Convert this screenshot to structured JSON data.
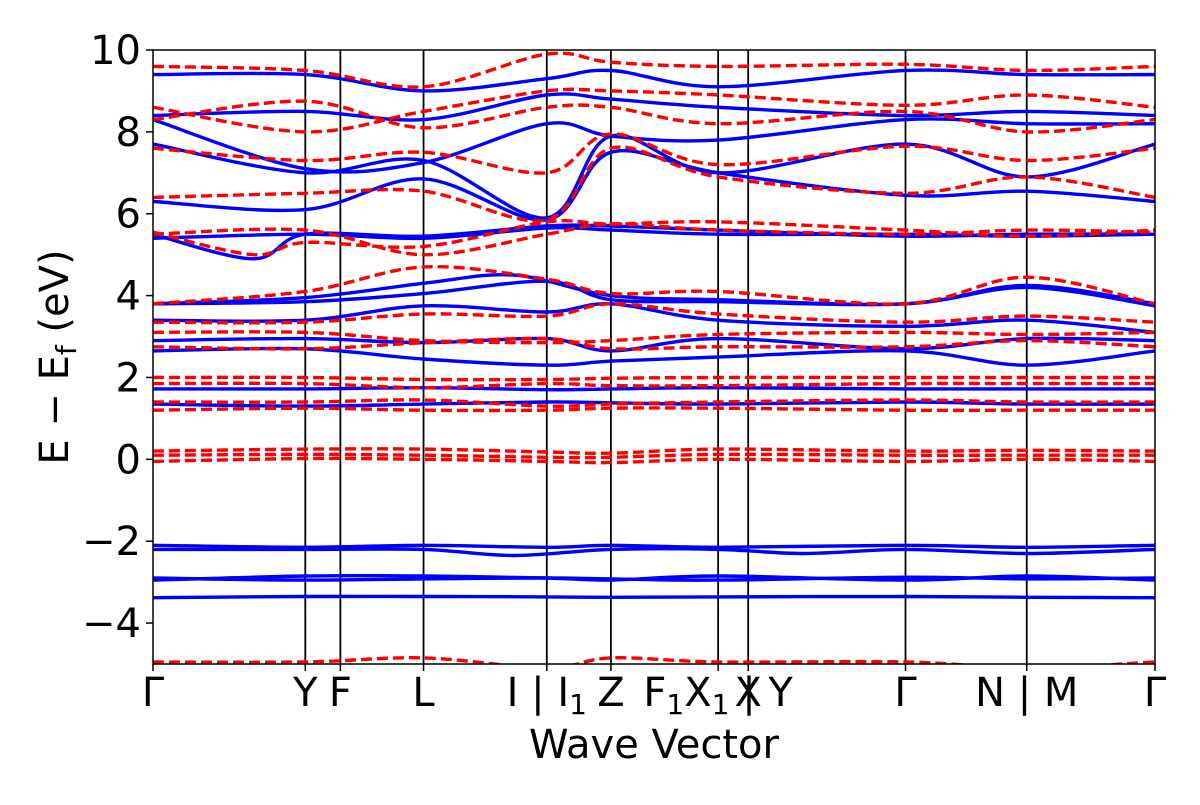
{
  "chart_data": {
    "type": "line",
    "title": "",
    "xlabel": "Wave Vector",
    "ylabel_parts": [
      "E − E",
      "f",
      " (eV)"
    ],
    "ylim": [
      -5,
      10
    ],
    "yticks": [
      -4,
      -2,
      0,
      2,
      4,
      6,
      8,
      10
    ],
    "ytick_labels": [
      "−4",
      "−2",
      "0",
      "2",
      "4",
      "6",
      "8",
      "10"
    ],
    "grid": false,
    "legend": "none",
    "kpath": {
      "x_range": [
        0,
        1
      ],
      "vlines": [
        0.152,
        0.187,
        0.27,
        0.393,
        0.457,
        0.564,
        0.594,
        0.751,
        0.872
      ],
      "labels": [
        {
          "x": 0.0,
          "text": "Γ"
        },
        {
          "x": 0.152,
          "text": "Y"
        },
        {
          "x": 0.187,
          "text": "F"
        },
        {
          "x": 0.27,
          "text": "L"
        },
        {
          "x": 0.393,
          "text": "I | I₁"
        },
        {
          "x": 0.457,
          "text": "Z"
        },
        {
          "x": 0.564,
          "text": "F₁X₁ | Y"
        },
        {
          "x": 0.594,
          "text": "X"
        },
        {
          "x": 0.751,
          "text": "Γ"
        },
        {
          "x": 0.872,
          "text": "N | M"
        },
        {
          "x": 1.0,
          "text": "Γ"
        }
      ]
    },
    "series": [
      {
        "color": "#0000ff",
        "style": "solid",
        "bands": [
          {
            "x": [
              0,
              0.152,
              0.27,
              0.393,
              0.457,
              0.564,
              0.751,
              0.872,
              1.0
            ],
            "y": [
              -3.38,
              -3.35,
              -3.35,
              -3.36,
              -3.37,
              -3.36,
              -3.35,
              -3.37,
              -3.38
            ]
          },
          {
            "x": [
              0,
              0.152,
              0.27,
              0.393,
              0.457,
              0.564,
              0.751,
              0.872,
              1.0
            ],
            "y": [
              -2.95,
              -2.85,
              -2.85,
              -2.9,
              -2.95,
              -2.85,
              -2.95,
              -2.85,
              -2.95
            ]
          },
          {
            "x": [
              0,
              0.152,
              0.27,
              0.393,
              0.457,
              0.564,
              0.751,
              0.872,
              1.0
            ],
            "y": [
              -2.9,
              -2.95,
              -2.92,
              -2.9,
              -2.92,
              -2.95,
              -2.88,
              -2.92,
              -2.9
            ]
          },
          {
            "x": [
              0,
              0.152,
              0.27,
              0.36,
              0.457,
              0.564,
              0.65,
              0.751,
              0.872,
              1.0
            ],
            "y": [
              -2.2,
              -2.2,
              -2.2,
              -2.35,
              -2.2,
              -2.2,
              -2.3,
              -2.2,
              -2.3,
              -2.2
            ]
          },
          {
            "x": [
              0,
              0.152,
              0.27,
              0.393,
              0.457,
              0.564,
              0.751,
              0.872,
              1.0
            ],
            "y": [
              -2.1,
              -2.15,
              -2.1,
              -2.15,
              -2.1,
              -2.15,
              -2.1,
              -2.15,
              -2.1
            ]
          },
          {
            "x": [
              0,
              0.152,
              0.27,
              0.393,
              0.457,
              0.564,
              0.751,
              0.872,
              1.0
            ],
            "y": [
              1.35,
              1.3,
              1.35,
              1.4,
              1.38,
              1.35,
              1.4,
              1.35,
              1.35
            ]
          },
          {
            "x": [
              0,
              0.152,
              0.27,
              0.393,
              0.457,
              0.564,
              0.751,
              0.872,
              1.0
            ],
            "y": [
              1.72,
              1.72,
              1.75,
              1.7,
              1.72,
              1.75,
              1.72,
              1.72,
              1.72
            ]
          },
          {
            "x": [
              0,
              0.152,
              0.27,
              0.393,
              0.457,
              0.564,
              0.751,
              0.872,
              1.0
            ],
            "y": [
              2.65,
              2.7,
              2.45,
              2.3,
              2.4,
              2.5,
              2.65,
              2.3,
              2.65
            ]
          },
          {
            "x": [
              0,
              0.152,
              0.27,
              0.393,
              0.457,
              0.564,
              0.751,
              0.872,
              1.0
            ],
            "y": [
              2.9,
              2.95,
              2.85,
              2.95,
              2.65,
              2.95,
              2.7,
              2.95,
              2.9
            ]
          },
          {
            "x": [
              0,
              0.152,
              0.27,
              0.393,
              0.457,
              0.564,
              0.751,
              0.872,
              1.0
            ],
            "y": [
              3.4,
              3.4,
              3.75,
              3.6,
              3.8,
              3.4,
              3.25,
              3.4,
              3.1
            ]
          },
          {
            "x": [
              0,
              0.152,
              0.27,
              0.393,
              0.457,
              0.564,
              0.751,
              0.872,
              1.0
            ],
            "y": [
              3.8,
              3.85,
              4.05,
              4.35,
              3.9,
              3.85,
              3.8,
              4.2,
              3.75
            ]
          },
          {
            "x": [
              0,
              0.152,
              0.27,
              0.36,
              0.457,
              0.564,
              0.751,
              0.872,
              1.0
            ],
            "y": [
              3.8,
              3.95,
              4.3,
              4.5,
              4.0,
              3.9,
              3.8,
              4.25,
              3.8
            ]
          },
          {
            "x": [
              0,
              0.152,
              0.27,
              0.393,
              0.457,
              0.564,
              0.751,
              0.872,
              1.0
            ],
            "y": [
              5.4,
              5.5,
              5.4,
              5.65,
              5.6,
              5.5,
              5.5,
              5.45,
              5.5
            ]
          },
          {
            "x": [
              0,
              0.1,
              0.152,
              0.27,
              0.393,
              0.457,
              0.564,
              0.751,
              0.872,
              1.0
            ],
            "y": [
              5.5,
              4.9,
              5.5,
              5.45,
              5.7,
              5.7,
              5.6,
              5.45,
              5.5,
              5.5
            ]
          },
          {
            "x": [
              0,
              0.152,
              0.27,
              0.393,
              0.457,
              0.564,
              0.751,
              0.872,
              1.0
            ],
            "y": [
              6.3,
              6.1,
              6.85,
              5.85,
              7.5,
              7.0,
              6.45,
              6.55,
              6.3
            ]
          },
          {
            "x": [
              0,
              0.152,
              0.27,
              0.393,
              0.457,
              0.564,
              0.751,
              0.872,
              1.0
            ],
            "y": [
              7.7,
              7.0,
              7.3,
              5.9,
              7.9,
              7.0,
              7.7,
              6.9,
              7.7
            ]
          },
          {
            "x": [
              0,
              0.152,
              0.27,
              0.393,
              0.457,
              0.564,
              0.751,
              0.872,
              1.0
            ],
            "y": [
              8.3,
              7.1,
              7.25,
              8.2,
              7.9,
              7.8,
              8.3,
              8.2,
              8.2
            ]
          },
          {
            "x": [
              0,
              0.152,
              0.27,
              0.393,
              0.457,
              0.564,
              0.751,
              0.872,
              1.0
            ],
            "y": [
              8.4,
              8.5,
              8.3,
              8.9,
              8.8,
              8.6,
              8.4,
              8.5,
              8.4
            ]
          },
          {
            "x": [
              0,
              0.152,
              0.27,
              0.393,
              0.457,
              0.564,
              0.751,
              0.872,
              1.0
            ],
            "y": [
              9.4,
              9.4,
              9.0,
              9.3,
              9.5,
              9.1,
              9.5,
              9.4,
              9.4
            ]
          }
        ]
      },
      {
        "color": "#ff0000",
        "style": "dashed",
        "bands": [
          {
            "x": [
              0,
              0.152,
              0.27,
              0.393,
              0.457,
              0.564,
              0.751,
              0.872,
              1.0
            ],
            "y": [
              -4.95,
              -4.95,
              -4.85,
              -5.1,
              -4.85,
              -4.95,
              -4.95,
              -5.1,
              -4.95
            ]
          },
          {
            "x": [
              0,
              0.152,
              0.27,
              0.393,
              0.457,
              0.564,
              0.751,
              0.872,
              1.0
            ],
            "y": [
              -0.05,
              0.02,
              0.0,
              -0.05,
              -0.08,
              0.0,
              -0.05,
              0.0,
              -0.05
            ]
          },
          {
            "x": [
              0,
              0.152,
              0.27,
              0.393,
              0.457,
              0.564,
              0.751,
              0.872,
              1.0
            ],
            "y": [
              0.1,
              0.12,
              0.1,
              0.05,
              0.05,
              0.12,
              0.1,
              0.1,
              0.1
            ]
          },
          {
            "x": [
              0,
              0.152,
              0.27,
              0.393,
              0.457,
              0.564,
              0.751,
              0.872,
              1.0
            ],
            "y": [
              0.2,
              0.25,
              0.25,
              0.18,
              0.15,
              0.25,
              0.2,
              0.22,
              0.2
            ]
          },
          {
            "x": [
              0,
              0.152,
              0.27,
              0.393,
              0.457,
              0.564,
              0.751,
              0.872,
              1.0
            ],
            "y": [
              1.2,
              1.25,
              1.2,
              1.2,
              1.25,
              1.25,
              1.2,
              1.2,
              1.2
            ]
          },
          {
            "x": [
              0,
              0.152,
              0.27,
              0.393,
              0.457,
              0.564,
              0.751,
              0.872,
              1.0
            ],
            "y": [
              1.4,
              1.4,
              1.45,
              1.3,
              1.35,
              1.4,
              1.45,
              1.4,
              1.4
            ]
          },
          {
            "x": [
              0,
              0.152,
              0.27,
              0.393,
              0.457,
              0.564,
              0.751,
              0.872,
              1.0
            ],
            "y": [
              1.85,
              1.85,
              1.75,
              1.85,
              1.8,
              1.8,
              1.85,
              1.85,
              1.85
            ]
          },
          {
            "x": [
              0,
              0.152,
              0.27,
              0.393,
              0.457,
              0.564,
              0.751,
              0.872,
              1.0
            ],
            "y": [
              2.0,
              2.0,
              1.95,
              1.95,
              1.98,
              2.0,
              2.0,
              2.0,
              2.0
            ]
          },
          {
            "x": [
              0,
              0.152,
              0.27,
              0.393,
              0.457,
              0.564,
              0.751,
              0.872,
              1.0
            ],
            "y": [
              2.75,
              2.7,
              2.85,
              2.95,
              2.7,
              2.75,
              2.75,
              2.9,
              2.75
            ]
          },
          {
            "x": [
              0,
              0.152,
              0.27,
              0.393,
              0.457,
              0.564,
              0.751,
              0.872,
              1.0
            ],
            "y": [
              3.1,
              3.1,
              2.9,
              2.85,
              2.9,
              3.05,
              3.1,
              3.05,
              3.1
            ]
          },
          {
            "x": [
              0,
              0.152,
              0.27,
              0.393,
              0.457,
              0.564,
              0.751,
              0.872,
              1.0
            ],
            "y": [
              3.35,
              3.35,
              3.55,
              3.5,
              3.8,
              3.55,
              3.35,
              3.5,
              3.35
            ]
          },
          {
            "x": [
              0,
              0.152,
              0.27,
              0.393,
              0.457,
              0.564,
              0.751,
              0.872,
              1.0
            ],
            "y": [
              3.8,
              4.1,
              4.7,
              4.4,
              4.05,
              4.1,
              3.8,
              4.45,
              3.8
            ]
          },
          {
            "x": [
              0,
              0.152,
              0.27,
              0.393,
              0.457,
              0.564,
              0.751,
              0.872,
              1.0
            ],
            "y": [
              5.5,
              5.6,
              5.0,
              5.5,
              5.75,
              5.6,
              5.5,
              5.6,
              5.55
            ]
          },
          {
            "x": [
              0,
              0.1,
              0.152,
              0.27,
              0.393,
              0.457,
              0.564,
              0.751,
              0.872,
              1.0
            ],
            "y": [
              5.55,
              5.0,
              5.3,
              5.2,
              5.8,
              5.75,
              5.8,
              5.6,
              5.45,
              5.6
            ]
          },
          {
            "x": [
              0,
              0.152,
              0.27,
              0.393,
              0.457,
              0.564,
              0.751,
              0.872,
              1.0
            ],
            "y": [
              6.4,
              6.5,
              6.55,
              5.85,
              7.6,
              6.9,
              6.5,
              6.9,
              6.4
            ]
          },
          {
            "x": [
              0,
              0.152,
              0.27,
              0.393,
              0.457,
              0.564,
              0.751,
              0.872,
              1.0
            ],
            "y": [
              7.6,
              7.3,
              7.5,
              7.0,
              7.95,
              7.2,
              7.65,
              7.3,
              7.6
            ]
          },
          {
            "x": [
              0,
              0.152,
              0.27,
              0.393,
              0.457,
              0.564,
              0.751,
              0.872,
              1.0
            ],
            "y": [
              8.3,
              8.75,
              8.1,
              8.6,
              8.6,
              8.2,
              8.5,
              8.0,
              8.3
            ]
          },
          {
            "x": [
              0,
              0.152,
              0.27,
              0.393,
              0.457,
              0.564,
              0.751,
              0.872,
              1.0
            ],
            "y": [
              8.6,
              8.0,
              8.5,
              9.0,
              9.0,
              8.9,
              8.65,
              8.9,
              8.6
            ]
          },
          {
            "x": [
              0,
              0.152,
              0.27,
              0.393,
              0.457,
              0.564,
              0.751,
              0.872,
              1.0
            ],
            "y": [
              9.6,
              9.5,
              9.1,
              9.9,
              9.7,
              9.6,
              9.65,
              9.5,
              9.6
            ]
          }
        ]
      }
    ]
  }
}
